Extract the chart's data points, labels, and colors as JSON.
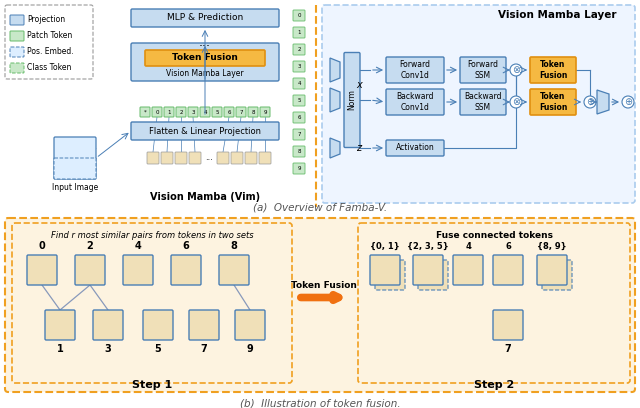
{
  "title_a": "(a)  Overview of Famba-V.",
  "title_b": "(b)  Illustration of token fusion.",
  "bg": "#ffffff",
  "blue_light": "#c6dcf0",
  "blue_med": "#4a7fb5",
  "green_light": "#c8e8c8",
  "green_med": "#66bb6a",
  "orange_fill": "#f5b942",
  "orange_edge": "#e09010",
  "patch_fill": "#f0e0b8",
  "panel_b_fill": "#fdf3e0",
  "dashed_orange": "#f0a020",
  "legend_items": [
    "Projection",
    "Patch Token",
    "Pos. Embed.",
    "Class Token"
  ],
  "mlp_label": "MLP & Prediction",
  "tf_label": "Token Fusion",
  "vml_label": "Vision Mamba Layer",
  "flatten_label": "Flatten & Linear Projection",
  "vim_label": "Vision Mamba (Vim)",
  "norm_label": "Norm",
  "fwd_conv": "Forward\nConv1d",
  "bwd_conv": "Backward\nConv1d",
  "fwd_ssm": "Forward\nSSM",
  "bwd_ssm": "Backward\nSSM",
  "act_label": "Activation",
  "vml_detail": "Vision Mamba Layer",
  "step1_title": "Find r most similar pairs from tokens in two sets",
  "step2_title": "Fuse connected tokens",
  "step1_label": "Step 1",
  "step2_label": "Step 2",
  "tok_fusion_lbl": "Token Fusion",
  "s1_top": [
    "0",
    "2",
    "4",
    "6",
    "8"
  ],
  "s1_bot": [
    "1",
    "3",
    "5",
    "7",
    "9"
  ],
  "s2_top": [
    "{0, 1}",
    "{2, 3, 5}",
    "4",
    "6",
    "{8, 9}"
  ],
  "s2_bot": "7",
  "vtok": [
    "0",
    "1",
    "2",
    "3",
    "4",
    "5",
    "6",
    "7",
    "8",
    "9"
  ],
  "tok_row": [
    "*",
    "0",
    "1",
    "2",
    "3",
    "4",
    "5",
    "6",
    "7",
    "8",
    "9"
  ]
}
